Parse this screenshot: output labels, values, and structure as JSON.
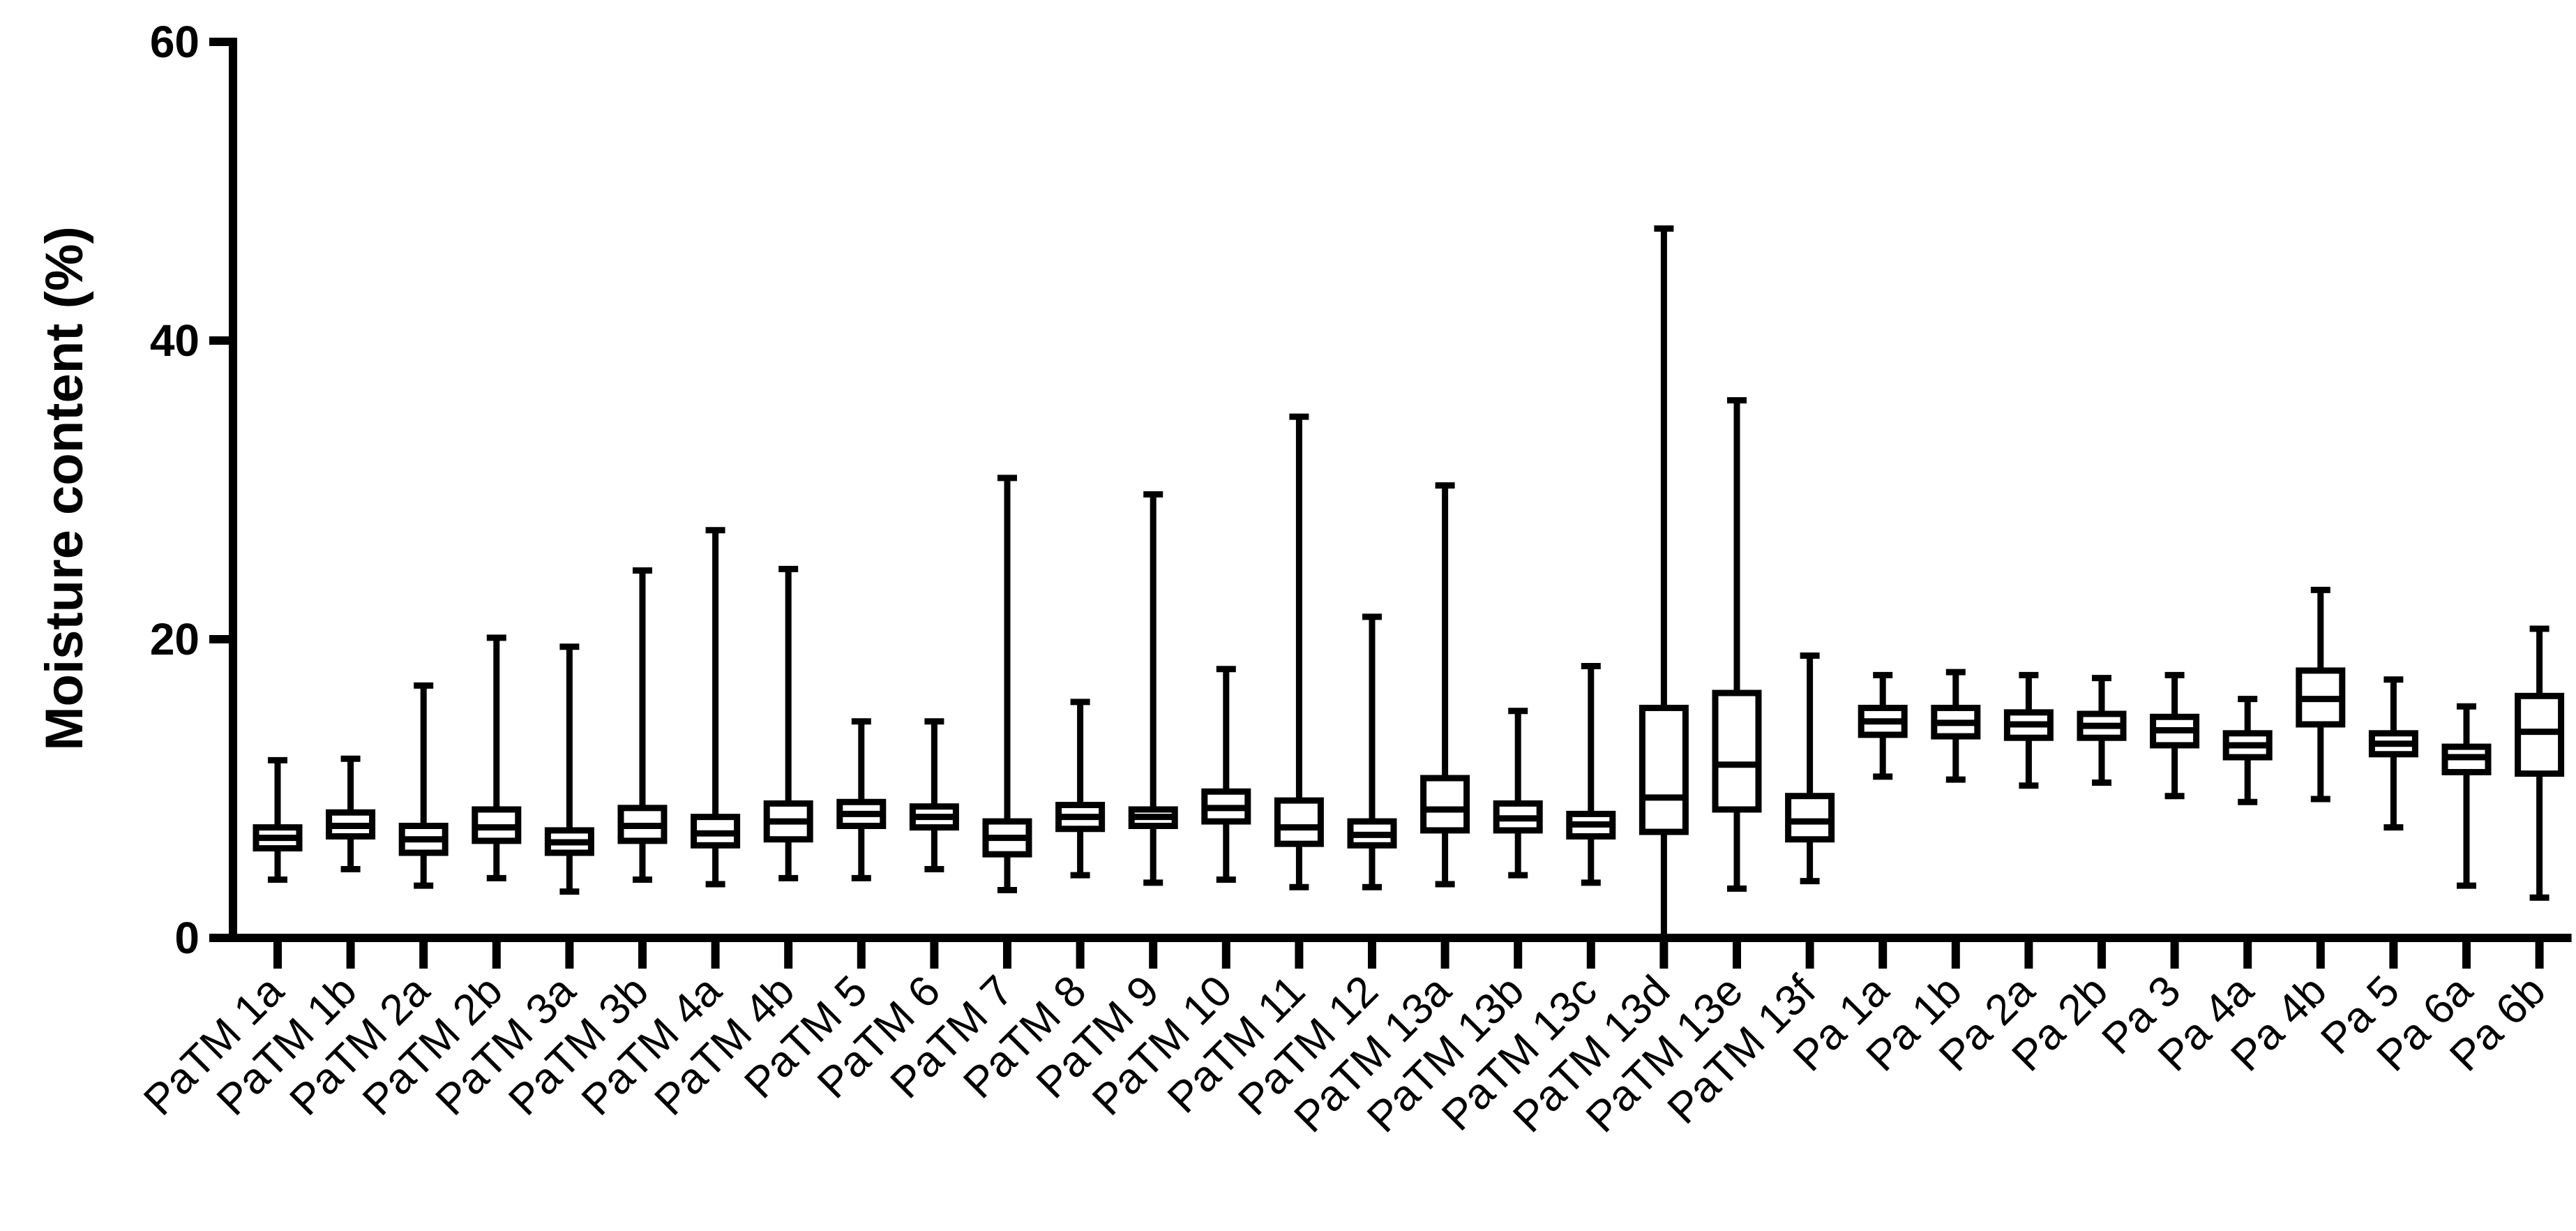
{
  "chart_data": {
    "type": "boxplot",
    "title": "",
    "xlabel": "",
    "ylabel": "Moisture content (%)",
    "ylim": [
      0,
      60
    ],
    "yticks": [
      0,
      20,
      40,
      60
    ],
    "grid": false,
    "categories": [
      "PaTM 1a",
      "PaTM 1b",
      "PaTM 2a",
      "PaTM 2b",
      "PaTM 3a",
      "PaTM 3b",
      "PaTM 4a",
      "PaTM 4b",
      "PaTM 5",
      "PaTM 6",
      "PaTM 7",
      "PaTM 8",
      "PaTM 9",
      "PaTM 10",
      "PaTM 11",
      "PaTM 12",
      "PaTM 13a",
      "PaTM 13b",
      "PaTM 13c",
      "PaTM 13d",
      "PaTM 13e",
      "PaTM 13f",
      "Pa 1a",
      "Pa 1b",
      "Pa 2a",
      "Pa 2b",
      "Pa 3",
      "Pa 4a",
      "Pa 4b",
      "Pa 5",
      "Pa 6a",
      "Pa 6b"
    ],
    "boxes": [
      {
        "min": 3.9,
        "q1": 6.0,
        "median": 6.7,
        "q3": 7.4,
        "max": 11.9
      },
      {
        "min": 4.6,
        "q1": 6.8,
        "median": 7.5,
        "q3": 8.4,
        "max": 12.0
      },
      {
        "min": 3.5,
        "q1": 5.7,
        "median": 6.6,
        "q3": 7.5,
        "max": 16.9
      },
      {
        "min": 4.0,
        "q1": 6.5,
        "median": 7.4,
        "q3": 8.6,
        "max": 20.1
      },
      {
        "min": 3.1,
        "q1": 5.7,
        "median": 6.4,
        "q3": 7.2,
        "max": 19.5
      },
      {
        "min": 3.9,
        "q1": 6.5,
        "median": 7.5,
        "q3": 8.7,
        "max": 24.6
      },
      {
        "min": 3.6,
        "q1": 6.2,
        "median": 7.0,
        "q3": 8.1,
        "max": 27.3
      },
      {
        "min": 4.0,
        "q1": 6.6,
        "median": 7.8,
        "q3": 9.0,
        "max": 24.7
      },
      {
        "min": 4.0,
        "q1": 7.5,
        "median": 8.3,
        "q3": 9.1,
        "max": 14.5
      },
      {
        "min": 4.6,
        "q1": 7.4,
        "median": 8.1,
        "q3": 8.8,
        "max": 14.5
      },
      {
        "min": 3.2,
        "q1": 5.6,
        "median": 6.7,
        "q3": 7.8,
        "max": 30.8
      },
      {
        "min": 4.2,
        "q1": 7.3,
        "median": 8.1,
        "q3": 8.9,
        "max": 15.8
      },
      {
        "min": 3.7,
        "q1": 7.5,
        "median": 8.1,
        "q3": 8.6,
        "max": 29.7
      },
      {
        "min": 3.9,
        "q1": 7.8,
        "median": 8.7,
        "q3": 9.8,
        "max": 18.0
      },
      {
        "min": 3.4,
        "q1": 6.3,
        "median": 7.4,
        "q3": 9.2,
        "max": 34.9
      },
      {
        "min": 3.4,
        "q1": 6.2,
        "median": 6.9,
        "q3": 7.8,
        "max": 21.5
      },
      {
        "min": 3.6,
        "q1": 7.2,
        "median": 8.6,
        "q3": 10.7,
        "max": 30.3
      },
      {
        "min": 4.2,
        "q1": 7.2,
        "median": 8.0,
        "q3": 9.0,
        "max": 15.2
      },
      {
        "min": 3.7,
        "q1": 6.8,
        "median": 7.6,
        "q3": 8.3,
        "max": 18.2
      },
      {
        "min": 0.0,
        "q1": 7.1,
        "median": 9.4,
        "q3": 15.4,
        "max": 47.5
      },
      {
        "min": 3.3,
        "q1": 8.6,
        "median": 11.6,
        "q3": 16.4,
        "max": 36.0
      },
      {
        "min": 3.8,
        "q1": 6.6,
        "median": 7.8,
        "q3": 9.5,
        "max": 18.9
      },
      {
        "min": 10.8,
        "q1": 13.6,
        "median": 14.5,
        "q3": 15.4,
        "max": 17.6
      },
      {
        "min": 10.6,
        "q1": 13.5,
        "median": 14.4,
        "q3": 15.4,
        "max": 17.8
      },
      {
        "min": 10.2,
        "q1": 13.4,
        "median": 14.3,
        "q3": 15.1,
        "max": 17.6
      },
      {
        "min": 10.4,
        "q1": 13.4,
        "median": 14.2,
        "q3": 15.0,
        "max": 17.4
      },
      {
        "min": 9.5,
        "q1": 12.9,
        "median": 13.9,
        "q3": 14.8,
        "max": 17.6
      },
      {
        "min": 9.1,
        "q1": 12.1,
        "median": 12.9,
        "q3": 13.7,
        "max": 16.0
      },
      {
        "min": 9.3,
        "q1": 14.3,
        "median": 16.0,
        "q3": 17.9,
        "max": 23.3
      },
      {
        "min": 7.4,
        "q1": 12.3,
        "median": 13.0,
        "q3": 13.7,
        "max": 17.3
      },
      {
        "min": 3.5,
        "q1": 11.1,
        "median": 12.1,
        "q3": 12.8,
        "max": 15.5
      },
      {
        "min": 2.7,
        "q1": 11.0,
        "median": 13.8,
        "q3": 16.2,
        "max": 20.7
      }
    ]
  }
}
